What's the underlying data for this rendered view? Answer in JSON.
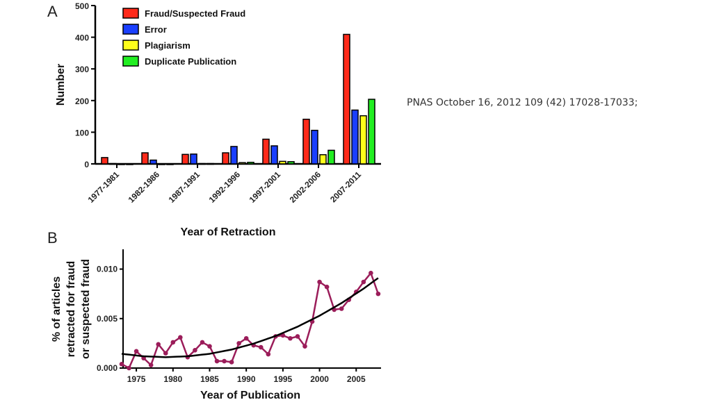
{
  "citation": "PNAS October 16, 2012 109 (42) 17028-17033;",
  "chart_data": [
    {
      "panel_label": "A",
      "type": "bar",
      "xlabel": "Year of Retraction",
      "ylabel": "Number",
      "ylim": [
        0,
        500
      ],
      "yticks": [
        0,
        100,
        200,
        300,
        400,
        500
      ],
      "categories": [
        "1977-1981",
        "1982-1986",
        "1987-1991",
        "1992-1996",
        "1997-2001",
        "2002-2006",
        "2007-2011"
      ],
      "legend_position": "top-left",
      "series": [
        {
          "name": "Fraud/Suspected Fraud",
          "color": "#ff2a1a",
          "values": [
            20,
            35,
            30,
            35,
            78,
            141,
            409
          ]
        },
        {
          "name": "Error",
          "color": "#1a3fff",
          "values": [
            1,
            12,
            31,
            55,
            57,
            106,
            170
          ]
        },
        {
          "name": "Plagiarism",
          "color": "#ffff1a",
          "values": [
            0,
            0,
            1,
            4,
            8,
            29,
            152
          ]
        },
        {
          "name": "Duplicate Publication",
          "color": "#22ee22",
          "values": [
            0,
            0,
            1,
            5,
            7,
            43,
            204
          ]
        }
      ]
    },
    {
      "panel_label": "B",
      "type": "line",
      "xlabel": "Year of Publication",
      "ylabel": [
        "% of articles",
        "retracted for fraud",
        "or suspected fraud"
      ],
      "xlim": [
        1973,
        2008
      ],
      "ylim": [
        0,
        0.012
      ],
      "xticks": [
        1975,
        1980,
        1985,
        1990,
        1995,
        2000,
        2005
      ],
      "yticks": [
        "0.000",
        "0.005",
        "0.010"
      ],
      "series": [
        {
          "color": "#9b1d5a",
          "x": [
            1973,
            1974,
            1975,
            1976,
            1977,
            1978,
            1979,
            1980,
            1981,
            1982,
            1983,
            1984,
            1985,
            1986,
            1987,
            1988,
            1989,
            1990,
            1991,
            1992,
            1993,
            1994,
            1995,
            1996,
            1997,
            1998,
            1999,
            2000,
            2001,
            2002,
            2003,
            2004,
            2005,
            2006,
            2007,
            2008
          ],
          "y": [
            0.0004,
            0.0,
            0.0017,
            0.001,
            0.0003,
            0.0024,
            0.0015,
            0.0026,
            0.0031,
            0.0011,
            0.0018,
            0.0026,
            0.0022,
            0.0007,
            0.0007,
            0.0006,
            0.0025,
            0.003,
            0.0023,
            0.0021,
            0.0014,
            0.0032,
            0.0033,
            0.003,
            0.0032,
            0.0022,
            0.0047,
            0.0087,
            0.0082,
            0.0059,
            0.006,
            0.0069,
            0.0077,
            0.0087,
            0.0096,
            0.0075
          ]
        }
      ],
      "trend": {
        "color": "#000000",
        "x": [
          1973,
          1976,
          1979,
          1982,
          1985,
          1988,
          1991,
          1994,
          1997,
          2000,
          2003,
          2006,
          2008
        ],
        "y": [
          0.00144,
          0.00119,
          0.0011,
          0.00119,
          0.00144,
          0.00187,
          0.00247,
          0.00324,
          0.00418,
          0.00529,
          0.00657,
          0.00802,
          0.0091
        ]
      }
    }
  ]
}
